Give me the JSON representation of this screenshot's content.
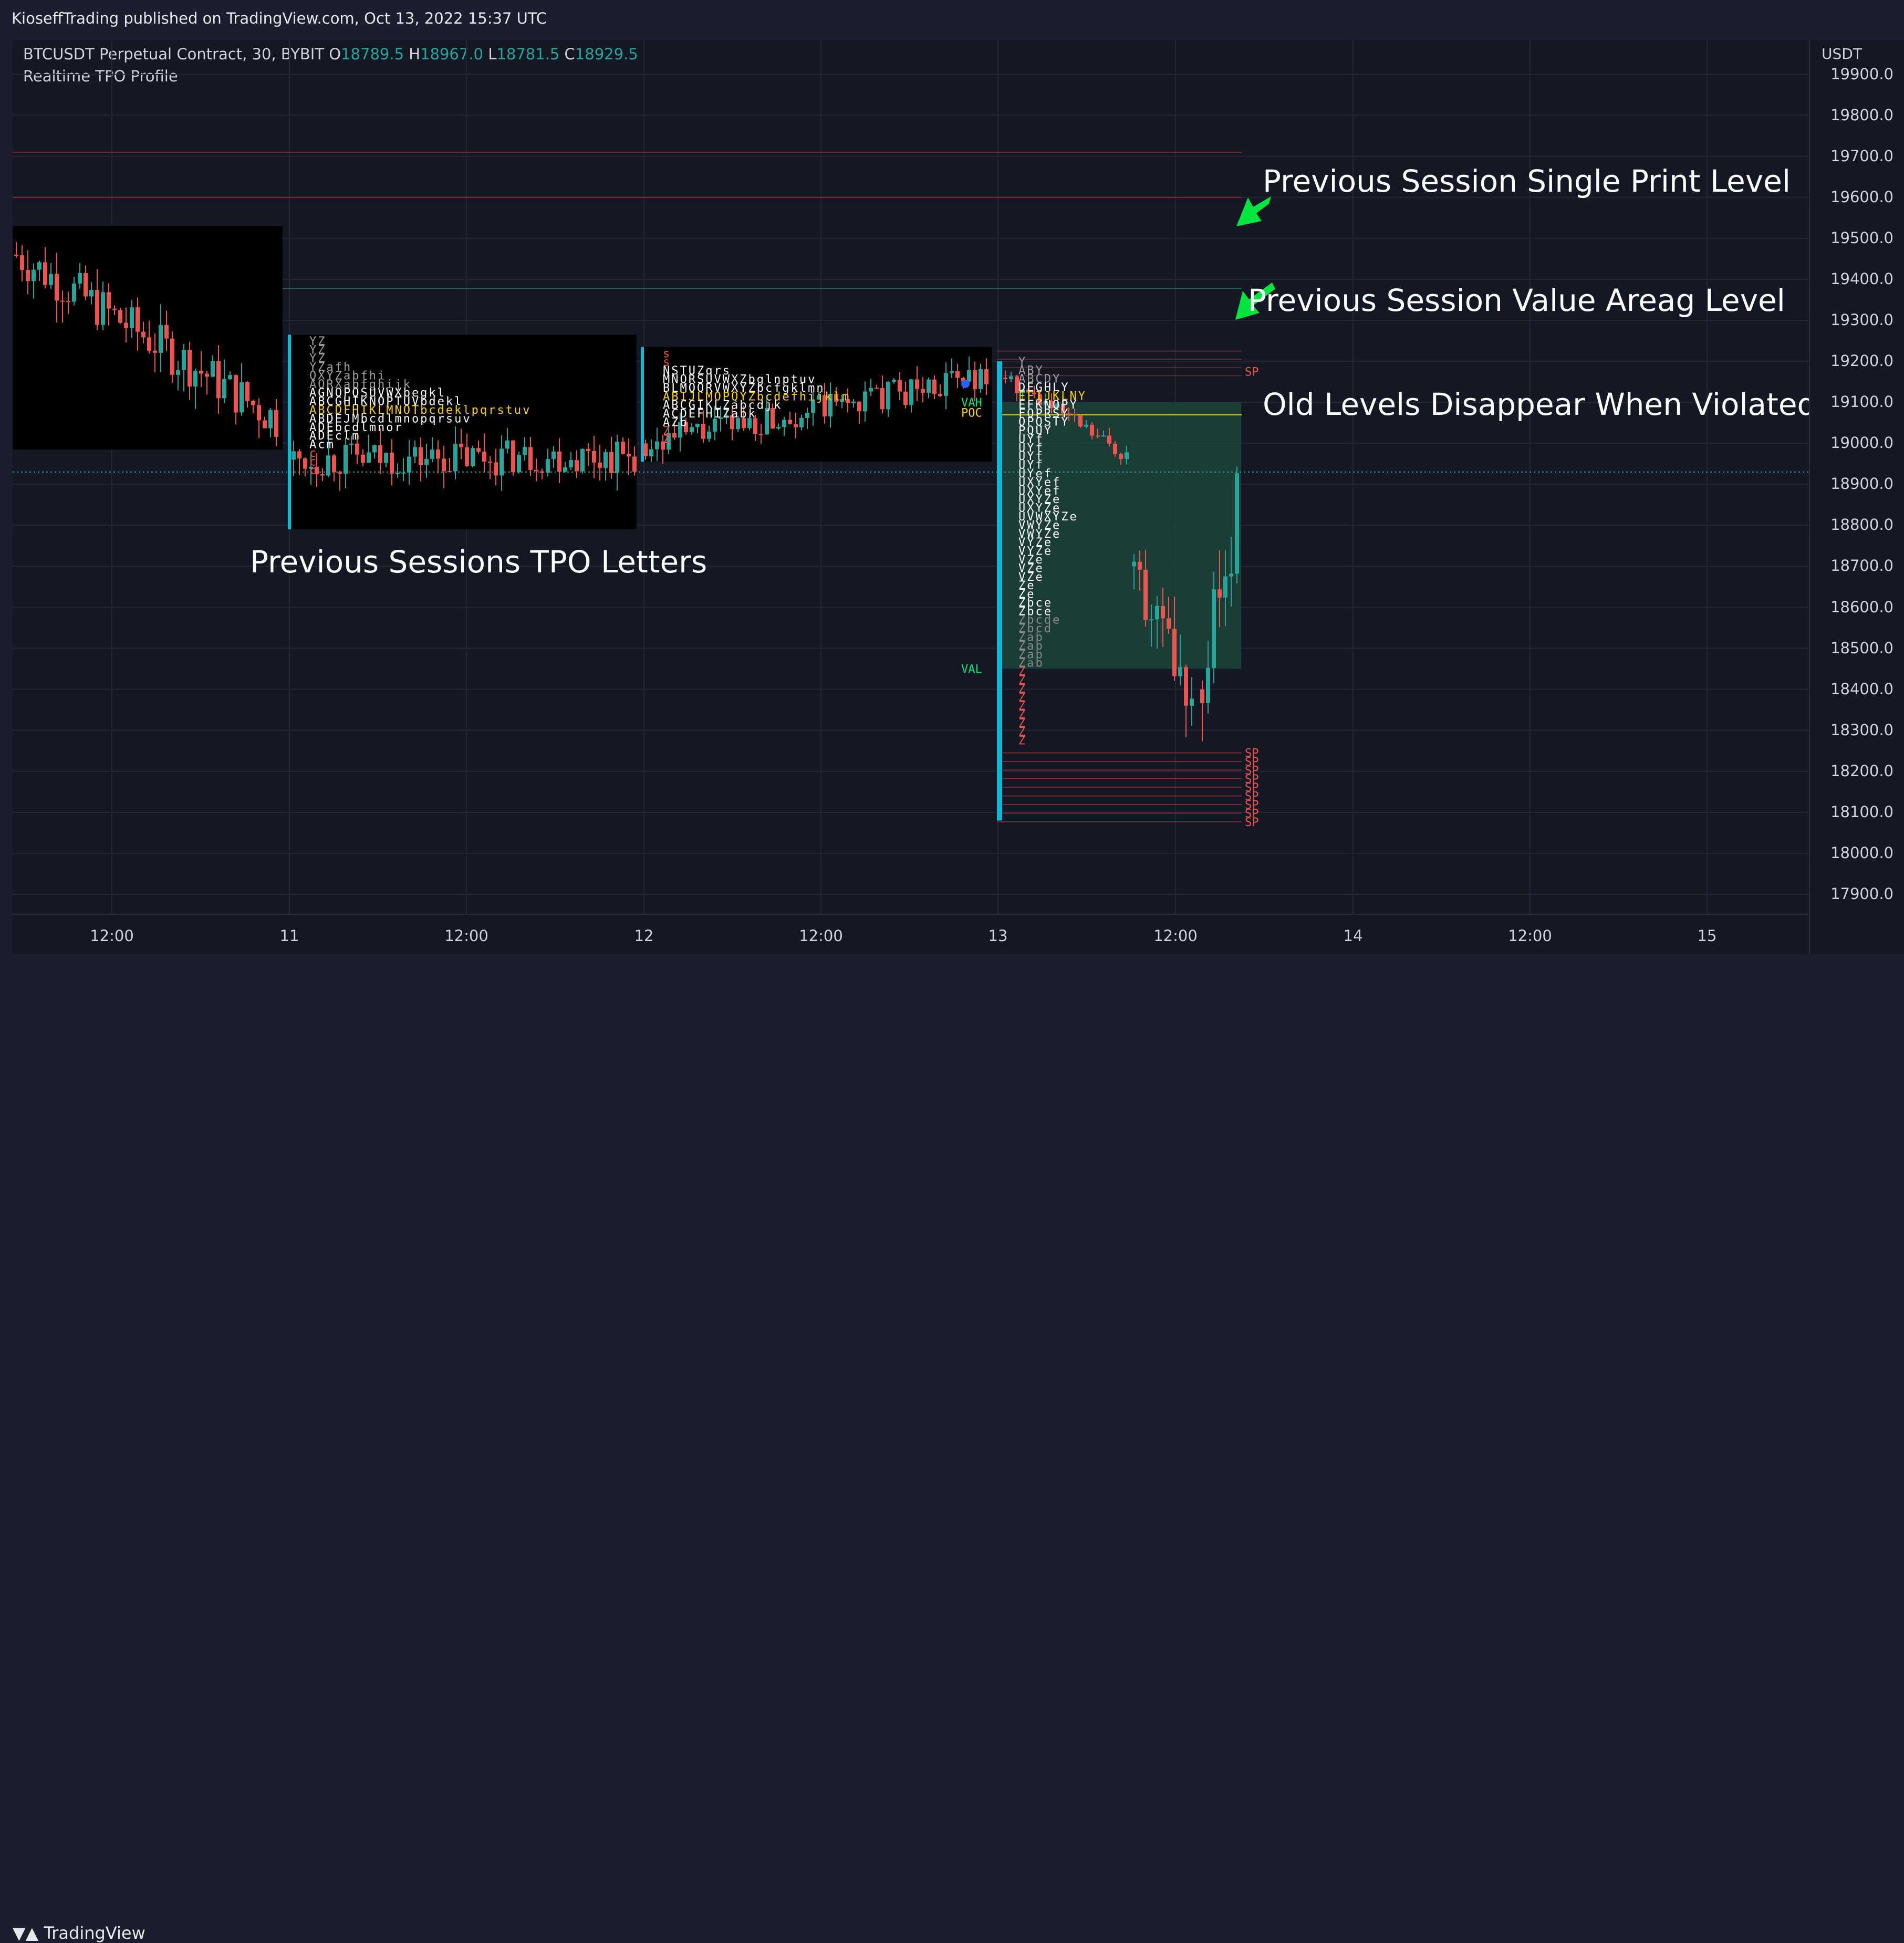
{
  "header": {
    "published": "KioseffTrading published on TradingView.com, Oct 13, 2022 15:37 UTC"
  },
  "legend": {
    "symbol": "BTCUSDT Perpetual Contract, 30, BYBIT",
    "o_label": "O",
    "o_value": "18789.5",
    "h_label": "H",
    "h_value": "18967.0",
    "l_label": "L",
    "l_value": "18781.5",
    "c_label": "C",
    "c_value": "18929.5",
    "indicator": "Realtime TPO Profile"
  },
  "annotations": {
    "single_print": "Previous Session Single Print Level",
    "value_area": "Previous Session Value Areag Level",
    "violated": "Old Levels Disappear When Violated",
    "tpo_letters": "Previous Sessions TPO Letters"
  },
  "price_scale": {
    "currency": "USDT",
    "labels": [
      "19900.0",
      "19800.0",
      "19700.0",
      "19600.0",
      "19500.0",
      "19400.0",
      "19300.0",
      "19200.0",
      "19100.0",
      "19000.0",
      "18900.0",
      "18800.0",
      "18700.0",
      "18600.0",
      "18500.0",
      "18400.0",
      "18300.0",
      "18200.0",
      "18100.0",
      "18000.0",
      "17900.0"
    ]
  },
  "time_scale": {
    "labels": [
      "12:00",
      "11",
      "12:00",
      "12",
      "12:00",
      "13",
      "12:00",
      "14",
      "12:00",
      "15"
    ]
  },
  "profile_labels": {
    "vah": "VAH",
    "poc": "POC",
    "val": "VAL",
    "sp": "SP"
  },
  "tpo": {
    "session1": [
      "YZ",
      "YZ",
      "YZ",
      "YZafh",
      "QXYZabfhi",
      "AQRXabfghijk",
      "AGNOPQSUVWXbegkl",
      "ABCGHIKNOPTUVbdekl",
      "ABCDFHIKLMNOTbcdeklpqrstuv",
      "ABDEJMbcdlmnopqrsuv",
      "ADEbcdlmnor",
      "ADEclm",
      "Acm",
      "c",
      "c",
      "c"
    ],
    "session2": [
      "s",
      "s",
      "NSTUZqrs",
      "MNORSUVWXZbglnptuv",
      "BLMOQRVWXYZbcfgklmn",
      "ABIJLMOPQYZbcdefhijklm",
      "ABCGIKLZabcdjk",
      "ACDEFHIZabk",
      "AZb",
      "Z",
      "Z"
    ],
    "session3": [
      "Y",
      "ABY",
      "ABCDY",
      "DEGHLY",
      "EFIJKLNY",
      "EFKNOPY",
      "FOPRSY",
      "OPQSTY",
      "PQUY",
      "UYf",
      "UYf",
      "UYf",
      "UYf",
      "UYef",
      "UXYef",
      "UXYef",
      "UXYZe",
      "UXYZe",
      "UVWXYZe",
      "VWYZe",
      "VWYZe",
      "VYZe",
      "VYZe",
      "VZe",
      "VZe",
      "VZe",
      "Ze",
      "Ze",
      "Zbce",
      "Zbce",
      "Zbcde",
      "Zbcd",
      "Zab",
      "Zab",
      "Zab",
      "Zab",
      "Z",
      "Z",
      "Z",
      "Z",
      "Z",
      "Z",
      "Z",
      "Z",
      "Z"
    ]
  },
  "colors": {
    "background": "#141824",
    "bull": "#26a69a",
    "bear": "#ef5350",
    "profile_bar": "#00bcd4",
    "arrow": "#00e640",
    "value_area": "#1e4a3c"
  }
}
